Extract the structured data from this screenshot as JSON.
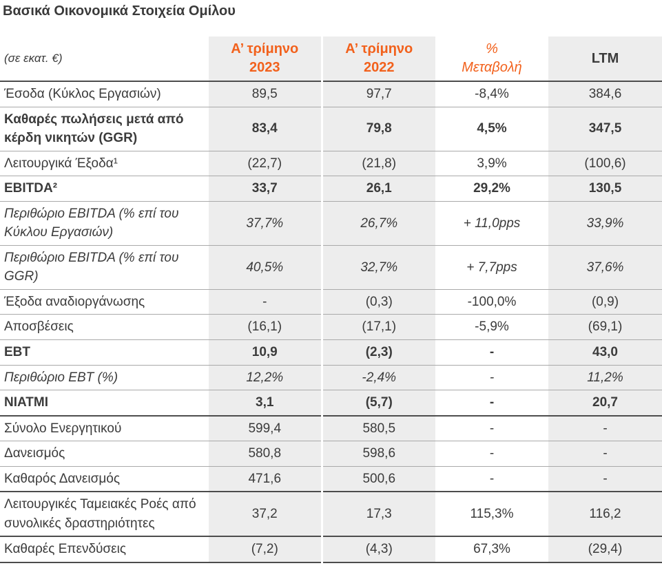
{
  "title": "Βασικά Οικονομικά Στοιχεία Ομίλου",
  "colors": {
    "accent_orange": "#F2611C",
    "shade_gray": "#EDEDED",
    "text_dark": "#3B3B3B",
    "rule_thin": "#A9A9A9",
    "rule_thick": "#4C4C4C"
  },
  "table": {
    "unit_label": "(σε εκατ. €)",
    "header": {
      "q1_2023": {
        "line1": "Α’ τρίμηνο",
        "line2": "2023"
      },
      "q1_2022": {
        "line1": "Α’ τρίμηνο",
        "line2": "2022"
      },
      "change": {
        "line1": "%",
        "line2": "Μεταβολή"
      },
      "ltm": {
        "line1": "LTM",
        "line2": ""
      }
    },
    "rows": [
      {
        "label": "Έσοδα (Κύκλος Εργασιών)",
        "values": [
          "89,5",
          "97,7",
          "-8,4%",
          "384,6"
        ]
      },
      {
        "label": "Καθαρές πωλήσεις μετά από κέρδη νικητών (GGR)",
        "values": [
          "83,4",
          "79,8",
          "4,5%",
          "347,5"
        ]
      },
      {
        "label": "Λειτουργικά Έξοδα¹",
        "values": [
          "(22,7)",
          "(21,8)",
          "3,9%",
          "(100,6)"
        ]
      },
      {
        "label": "EBITDA²",
        "values": [
          "33,7",
          "26,1",
          "29,2%",
          "130,5"
        ]
      },
      {
        "label": "Περιθώριο EBITDA (% επί του Κύκλου Εργασιών)",
        "values": [
          "37,7%",
          "26,7%",
          "+ 11,0pps",
          "33,9%"
        ]
      },
      {
        "label": "Περιθώριο EBITDA (% επί του GGR)",
        "values": [
          "40,5%",
          "32,7%",
          "+ 7,7pps",
          "37,6%"
        ]
      },
      {
        "label": "Έξοδα αναδιοργάνωσης",
        "values": [
          "-",
          "(0,3)",
          "-100,0%",
          "(0,9)"
        ]
      },
      {
        "label": "Αποσβέσεις",
        "values": [
          "(16,1)",
          "(17,1)",
          "-5,9%",
          "(69,1)"
        ]
      },
      {
        "label": "EBT",
        "values": [
          "10,9",
          "(2,3)",
          "-",
          "43,0"
        ]
      },
      {
        "label": "Περιθώριο EBT (%)",
        "values": [
          "12,2%",
          "-2,4%",
          "-",
          "11,2%"
        ]
      },
      {
        "label": "NIATMI",
        "values": [
          "3,1",
          "(5,7)",
          "-",
          "20,7"
        ]
      },
      {
        "label": "Σύνολο Ενεργητικού",
        "values": [
          "599,4",
          "580,5",
          "-",
          "-"
        ]
      },
      {
        "label": "Δανεισμός",
        "values": [
          "580,8",
          "598,6",
          "-",
          "-"
        ]
      },
      {
        "label": "Καθαρός Δανεισμός",
        "values": [
          "471,6",
          "500,6",
          "-",
          "-"
        ]
      },
      {
        "label": "Λειτουργικές Ταμειακές Ροές από συνολικές δραστηριότητες",
        "values": [
          "37,2",
          "17,3",
          "115,3%",
          "116,2"
        ]
      },
      {
        "label": "Καθαρές Επενδύσεις",
        "values": [
          "(7,2)",
          "(4,3)",
          "67,3%",
          "(29,4)"
        ]
      }
    ]
  }
}
